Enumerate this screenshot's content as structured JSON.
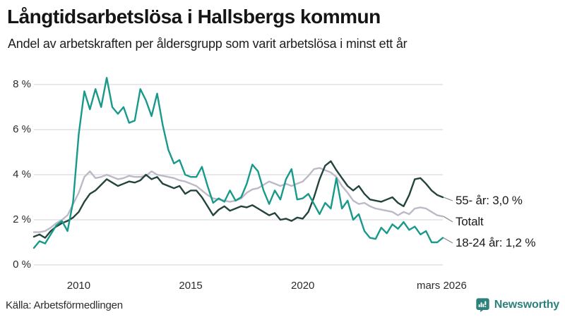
{
  "header": {
    "title": "Långtidsarbetslösa i Hallsbergs kommun",
    "subtitle": "Andel av arbetskraften per åldersgrupp som varit arbetslösa i minst ett år"
  },
  "footer": {
    "source": "Källa: Arbetsförmedlingen",
    "brand": "Newsworthy"
  },
  "colors": {
    "series_55": "#24433d",
    "series_total": "#bdb9c7",
    "series_18_24": "#18998a",
    "gridline": "#dcdbe2",
    "connector": "#8a8a8a",
    "brand_teal": "#2e817b"
  },
  "chart_data": {
    "type": "line",
    "title": "Långtidsarbetslösa i Hallsbergs kommun",
    "subtitle": "Andel av arbetskraften per åldersgrupp som varit arbetslösa i minst ett år",
    "unit": "%",
    "x_start": 2008.0,
    "x_step": 0.25,
    "x_end": 2026.25,
    "ylim": [
      0,
      8
    ],
    "grid": "horizontal",
    "legend_position": "right-of-line-ends",
    "yticks": [
      {
        "value": 0,
        "label": "0 %"
      },
      {
        "value": 2,
        "label": "2 %"
      },
      {
        "value": 4,
        "label": "4 %"
      },
      {
        "value": 6,
        "label": "6 %"
      },
      {
        "value": 8,
        "label": "8 %"
      }
    ],
    "xticks": [
      {
        "x": 2010,
        "label": "2010"
      },
      {
        "x": 2015,
        "label": "2015"
      },
      {
        "x": 2020,
        "label": "2020"
      },
      {
        "x": 2026.2,
        "label": "mars 2026"
      }
    ],
    "series": [
      {
        "name": "55- år",
        "end_label": "55- år: 3,0 %",
        "last_value": 3.0,
        "color": "#24433d",
        "values": [
          1.25,
          1.35,
          1.2,
          1.5,
          1.7,
          1.85,
          1.95,
          2.1,
          2.35,
          2.8,
          3.15,
          3.3,
          3.55,
          3.8,
          3.65,
          3.5,
          3.6,
          3.7,
          3.65,
          3.75,
          4.0,
          3.8,
          3.9,
          3.6,
          3.5,
          3.4,
          3.5,
          3.15,
          3.3,
          3.3,
          3.0,
          2.6,
          2.2,
          2.45,
          2.6,
          2.4,
          2.5,
          2.6,
          2.55,
          2.65,
          2.5,
          2.35,
          2.2,
          2.3,
          2.0,
          2.05,
          1.95,
          2.1,
          2.05,
          2.35,
          3.0,
          3.8,
          4.4,
          4.6,
          4.2,
          3.85,
          3.5,
          3.3,
          3.5,
          3.15,
          2.9,
          2.85,
          2.8,
          2.9,
          3.0,
          2.75,
          2.6,
          3.1,
          3.8,
          3.85,
          3.6,
          3.3,
          3.1,
          3.0
        ]
      },
      {
        "name": "Totalt",
        "end_label": "Totalt",
        "last_value": 2.15,
        "color": "#bdb9c7",
        "values": [
          1.45,
          1.45,
          1.5,
          1.65,
          1.85,
          2.0,
          2.2,
          2.7,
          3.2,
          3.9,
          4.15,
          3.85,
          3.9,
          4.0,
          3.9,
          3.8,
          3.85,
          3.95,
          3.9,
          3.9,
          3.95,
          4.15,
          4.0,
          3.95,
          3.9,
          3.85,
          3.75,
          3.7,
          3.6,
          3.5,
          3.3,
          3.1,
          2.95,
          2.9,
          2.85,
          2.8,
          2.85,
          2.95,
          3.2,
          3.35,
          3.4,
          3.55,
          3.7,
          3.6,
          3.5,
          3.6,
          3.5,
          3.6,
          3.7,
          3.95,
          4.25,
          4.3,
          4.2,
          4.1,
          3.9,
          3.5,
          3.2,
          2.85,
          2.7,
          2.75,
          2.6,
          2.5,
          2.45,
          2.4,
          2.35,
          2.2,
          2.35,
          2.25,
          2.5,
          2.55,
          2.5,
          2.35,
          2.2,
          2.15
        ]
      },
      {
        "name": "18-24 år",
        "end_label": "18-24 år: 1,2 %",
        "last_value": 1.2,
        "color": "#18998a",
        "values": [
          0.75,
          1.05,
          0.95,
          1.35,
          1.75,
          1.95,
          1.5,
          2.8,
          5.8,
          7.7,
          6.9,
          7.8,
          7.0,
          8.3,
          7.0,
          6.7,
          7.0,
          6.3,
          6.4,
          7.8,
          7.3,
          6.6,
          7.6,
          6.2,
          5.1,
          4.5,
          4.65,
          4.0,
          3.9,
          3.9,
          4.35,
          3.5,
          2.75,
          2.95,
          2.8,
          3.3,
          2.85,
          3.0,
          3.6,
          4.45,
          4.15,
          3.3,
          2.7,
          3.3,
          2.9,
          3.8,
          4.25,
          2.9,
          2.95,
          3.15,
          2.7,
          2.25,
          2.75,
          2.5,
          3.85,
          2.5,
          2.85,
          2.0,
          2.25,
          1.5,
          1.2,
          1.15,
          1.65,
          1.4,
          1.8,
          1.6,
          1.9,
          1.55,
          1.7,
          1.35,
          1.5,
          1.0,
          1.0,
          1.2
        ]
      }
    ]
  }
}
